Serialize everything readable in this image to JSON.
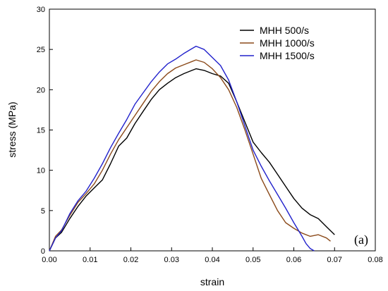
{
  "chart_data": {
    "type": "line",
    "title": "",
    "xlabel": "strain",
    "ylabel": "stress (MPa)",
    "xlim": [
      0,
      0.08
    ],
    "ylim": [
      0,
      30
    ],
    "x_ticks": [
      "0.00",
      "0.01",
      "0.02",
      "0.03",
      "0.04",
      "0.05",
      "0.06",
      "0.07",
      "0.08"
    ],
    "y_ticks": [
      "0",
      "5",
      "10",
      "15",
      "20",
      "25",
      "30"
    ],
    "panel_label": "(a)",
    "grid": false,
    "legend_position": "top-right",
    "series": [
      {
        "name": "MHH 500/s",
        "color": "#000000",
        "x": [
          0.0,
          0.0015,
          0.003,
          0.005,
          0.007,
          0.009,
          0.011,
          0.013,
          0.015,
          0.017,
          0.019,
          0.021,
          0.023,
          0.025,
          0.027,
          0.029,
          0.031,
          0.033,
          0.035,
          0.036,
          0.038,
          0.04,
          0.042,
          0.044,
          0.046,
          0.048,
          0.05,
          0.052,
          0.054,
          0.056,
          0.058,
          0.06,
          0.062,
          0.064,
          0.066,
          0.068,
          0.07
        ],
        "y": [
          0,
          1.6,
          2.3,
          4.0,
          5.5,
          6.8,
          7.8,
          8.8,
          10.8,
          13.0,
          14.0,
          15.8,
          17.3,
          18.8,
          20.0,
          20.8,
          21.5,
          22.0,
          22.4,
          22.6,
          22.4,
          22.0,
          21.7,
          20.8,
          18.5,
          16.0,
          13.5,
          12.2,
          11.0,
          9.5,
          8.0,
          6.5,
          5.3,
          4.5,
          4.0,
          3.0,
          2.0
        ]
      },
      {
        "name": "MHH 1000/s",
        "color": "#8b4a1a",
        "x": [
          0.0,
          0.0015,
          0.003,
          0.005,
          0.007,
          0.009,
          0.011,
          0.013,
          0.015,
          0.017,
          0.019,
          0.021,
          0.023,
          0.025,
          0.027,
          0.029,
          0.031,
          0.033,
          0.035,
          0.036,
          0.038,
          0.04,
          0.042,
          0.044,
          0.046,
          0.048,
          0.05,
          0.052,
          0.054,
          0.056,
          0.058,
          0.06,
          0.062,
          0.064,
          0.066,
          0.068,
          0.069
        ],
        "y": [
          0,
          1.8,
          2.6,
          4.4,
          6.0,
          7.1,
          8.3,
          10.0,
          12.0,
          13.8,
          15.3,
          16.8,
          18.3,
          19.8,
          21.0,
          22.0,
          22.7,
          23.1,
          23.5,
          23.7,
          23.4,
          22.6,
          21.5,
          20.0,
          17.8,
          15.0,
          12.0,
          9.0,
          7.0,
          5.0,
          3.5,
          2.8,
          2.2,
          1.8,
          2.0,
          1.6,
          1.2
        ]
      },
      {
        "name": "MHH 1500/s",
        "color": "#2222cc",
        "x": [
          0.0,
          0.0015,
          0.003,
          0.005,
          0.007,
          0.009,
          0.011,
          0.013,
          0.015,
          0.017,
          0.019,
          0.021,
          0.023,
          0.025,
          0.027,
          0.029,
          0.031,
          0.033,
          0.035,
          0.036,
          0.038,
          0.04,
          0.042,
          0.044,
          0.046,
          0.048,
          0.05,
          0.052,
          0.054,
          0.056,
          0.058,
          0.06,
          0.062,
          0.063,
          0.064,
          0.065
        ],
        "y": [
          0,
          1.6,
          2.5,
          4.6,
          6.2,
          7.4,
          9.0,
          10.8,
          12.8,
          14.6,
          16.3,
          18.2,
          19.6,
          21.0,
          22.2,
          23.2,
          23.8,
          24.5,
          25.1,
          25.4,
          25.0,
          24.0,
          23.0,
          21.2,
          18.5,
          15.5,
          12.5,
          10.5,
          8.7,
          7.0,
          5.3,
          3.5,
          1.8,
          0.9,
          0.3,
          0.0
        ]
      }
    ]
  }
}
